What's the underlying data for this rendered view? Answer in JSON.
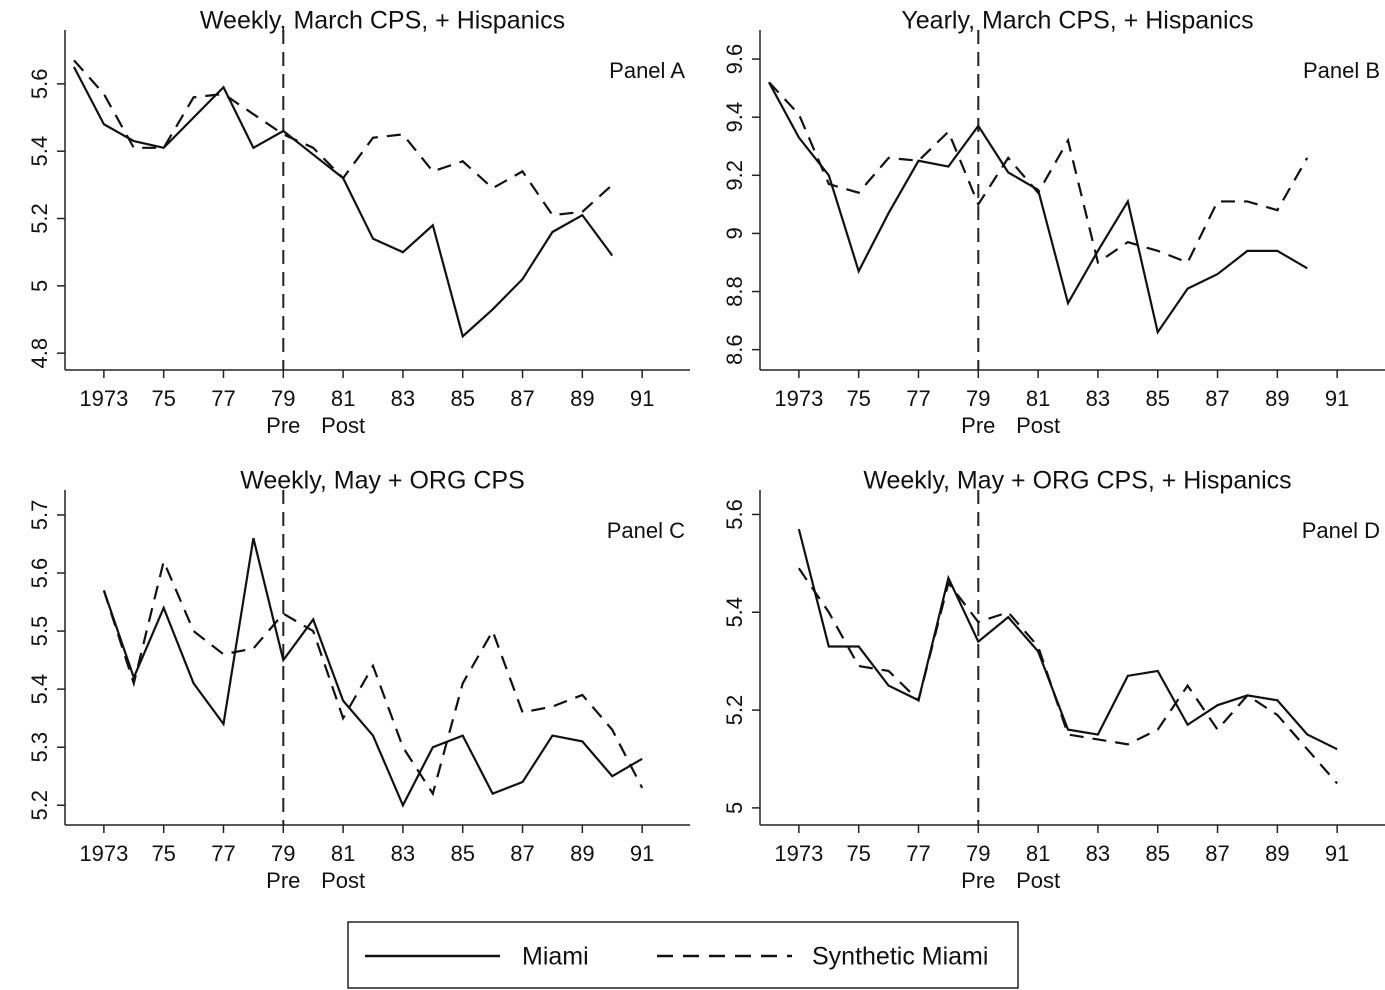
{
  "chart_data": [
    {
      "type": "line",
      "title": "Weekly, March CPS, + Hispanics",
      "panel_label": "Panel A",
      "x": [
        1972,
        1973,
        1974,
        1975,
        1976,
        1977,
        1978,
        1979,
        1980,
        1981,
        1982,
        1983,
        1984,
        1985,
        1986,
        1987,
        1988,
        1989,
        1990
      ],
      "series": [
        {
          "name": "Miami",
          "color": "#111111",
          "dash": "solid",
          "values": [
            5.65,
            5.48,
            5.43,
            5.41,
            5.5,
            5.59,
            5.41,
            5.46,
            5.39,
            5.32,
            5.14,
            5.1,
            5.18,
            4.85,
            4.93,
            5.02,
            5.16,
            5.21,
            5.09
          ]
        },
        {
          "name": "Synthetic Miami",
          "color": "#111111",
          "dash": "dashed",
          "values": [
            5.67,
            5.57,
            5.41,
            5.41,
            5.56,
            5.57,
            5.51,
            5.45,
            5.41,
            5.32,
            5.44,
            5.45,
            5.34,
            5.37,
            5.29,
            5.34,
            5.21,
            5.22,
            5.3
          ]
        }
      ],
      "xlim": [
        1971.7,
        1992.6
      ],
      "ylim": [
        4.75,
        5.76
      ],
      "xticks": [
        {
          "value": 1973,
          "label": "1973"
        },
        {
          "value": 1975,
          "label": "75"
        },
        {
          "value": 1977,
          "label": "77"
        },
        {
          "value": 1979,
          "label": "79"
        },
        {
          "value": 1981,
          "label": "81"
        },
        {
          "value": 1983,
          "label": "83"
        },
        {
          "value": 1985,
          "label": "85"
        },
        {
          "value": 1987,
          "label": "87"
        },
        {
          "value": 1989,
          "label": "89"
        },
        {
          "value": 1991,
          "label": "91"
        }
      ],
      "yticks": [
        4.8,
        5,
        5.2,
        5.4,
        5.6
      ],
      "vline": 1979,
      "annotations": [
        {
          "text": "Pre",
          "x": 1979
        },
        {
          "text": "Post",
          "x": 1981
        }
      ]
    },
    {
      "type": "line",
      "title": "Yearly, March CPS, + Hispanics",
      "panel_label": "Panel B",
      "x": [
        1972,
        1973,
        1974,
        1975,
        1976,
        1977,
        1978,
        1979,
        1980,
        1981,
        1982,
        1983,
        1984,
        1985,
        1986,
        1987,
        1988,
        1989,
        1990
      ],
      "series": [
        {
          "color": "#111111",
          "dash": "solid",
          "values": [
            9.52,
            9.33,
            9.2,
            8.87,
            9.07,
            9.25,
            9.23,
            9.37,
            9.21,
            9.15,
            8.76,
            8.94,
            9.11,
            8.66,
            8.81,
            8.86,
            8.94,
            8.94,
            8.88
          ]
        },
        {
          "color": "#111111",
          "dash": "dashed",
          "values": [
            9.52,
            9.41,
            9.17,
            9.14,
            9.26,
            9.25,
            9.35,
            9.1,
            9.26,
            9.14,
            9.32,
            8.9,
            8.97,
            8.94,
            8.9,
            9.11,
            9.11,
            9.08,
            9.26
          ]
        }
      ],
      "xlim": [
        1971.7,
        1992.6
      ],
      "ylim": [
        8.53,
        9.7
      ],
      "xticks": [
        {
          "value": 1973,
          "label": "1973"
        },
        {
          "value": 1975,
          "label": "75"
        },
        {
          "value": 1977,
          "label": "77"
        },
        {
          "value": 1979,
          "label": "79"
        },
        {
          "value": 1981,
          "label": "81"
        },
        {
          "value": 1983,
          "label": "83"
        },
        {
          "value": 1985,
          "label": "85"
        },
        {
          "value": 1987,
          "label": "87"
        },
        {
          "value": 1989,
          "label": "89"
        },
        {
          "value": 1991,
          "label": "91"
        }
      ],
      "yticks": [
        8.6,
        8.8,
        9,
        9.2,
        9.4,
        9.6
      ],
      "vline": 1979,
      "annotations": [
        {
          "text": "Pre",
          "x": 1979
        },
        {
          "text": "Post",
          "x": 1981
        }
      ]
    },
    {
      "type": "line",
      "title": "Weekly, May + ORG CPS",
      "panel_label": "Panel C",
      "x": [
        1973,
        1974,
        1975,
        1976,
        1977,
        1978,
        1979,
        1980,
        1981,
        1982,
        1983,
        1984,
        1985,
        1986,
        1987,
        1988,
        1989,
        1990,
        1991
      ],
      "series": [
        {
          "color": "#111111",
          "dash": "solid",
          "values": [
            5.57,
            5.42,
            5.54,
            5.41,
            5.34,
            5.66,
            5.45,
            5.52,
            5.38,
            5.32,
            5.2,
            5.3,
            5.32,
            5.22,
            5.24,
            5.32,
            5.31,
            5.25,
            5.28
          ]
        },
        {
          "color": "#111111",
          "dash": "dashed",
          "values": [
            5.57,
            5.41,
            5.62,
            5.5,
            5.46,
            5.47,
            5.53,
            5.5,
            5.35,
            5.44,
            5.3,
            5.22,
            5.41,
            5.5,
            5.36,
            5.37,
            5.39,
            5.33,
            5.23
          ]
        }
      ],
      "xlim": [
        1971.7,
        1992.6
      ],
      "ylim": [
        5.166,
        5.743
      ],
      "xticks": [
        {
          "value": 1973,
          "label": "1973"
        },
        {
          "value": 1975,
          "label": "75"
        },
        {
          "value": 1977,
          "label": "77"
        },
        {
          "value": 1979,
          "label": "79"
        },
        {
          "value": 1981,
          "label": "81"
        },
        {
          "value": 1983,
          "label": "83"
        },
        {
          "value": 1985,
          "label": "85"
        },
        {
          "value": 1987,
          "label": "87"
        },
        {
          "value": 1989,
          "label": "89"
        },
        {
          "value": 1991,
          "label": "91"
        }
      ],
      "yticks": [
        5.2,
        5.3,
        5.4,
        5.5,
        5.6,
        5.7
      ],
      "vline": 1979,
      "annotations": [
        {
          "text": "Pre",
          "x": 1979
        },
        {
          "text": "Post",
          "x": 1981
        }
      ]
    },
    {
      "type": "line",
      "title": "Weekly, May + ORG CPS, + Hispanics",
      "panel_label": "Panel D",
      "x": [
        1973,
        1974,
        1975,
        1976,
        1977,
        1978,
        1979,
        1980,
        1981,
        1982,
        1983,
        1984,
        1985,
        1986,
        1987,
        1988,
        1989,
        1990,
        1991
      ],
      "series": [
        {
          "color": "#111111",
          "dash": "solid",
          "values": [
            5.57,
            5.33,
            5.33,
            5.25,
            5.22,
            5.47,
            5.34,
            5.39,
            5.32,
            5.16,
            5.15,
            5.27,
            5.28,
            5.17,
            5.21,
            5.23,
            5.22,
            5.15,
            5.12
          ]
        },
        {
          "color": "#111111",
          "dash": "dashed",
          "values": [
            5.49,
            5.4,
            5.29,
            5.28,
            5.22,
            5.46,
            5.38,
            5.4,
            5.33,
            5.15,
            5.14,
            5.13,
            5.16,
            5.25,
            5.16,
            5.23,
            5.19,
            5.12,
            5.05
          ]
        }
      ],
      "xlim": [
        1971.7,
        1992.6
      ],
      "ylim": [
        4.965,
        5.65
      ],
      "xticks": [
        {
          "value": 1973,
          "label": "1973"
        },
        {
          "value": 1975,
          "label": "75"
        },
        {
          "value": 1977,
          "label": "77"
        },
        {
          "value": 1979,
          "label": "79"
        },
        {
          "value": 1981,
          "label": "81"
        },
        {
          "value": 1983,
          "label": "83"
        },
        {
          "value": 1985,
          "label": "85"
        },
        {
          "value": 1987,
          "label": "87"
        },
        {
          "value": 1989,
          "label": "89"
        },
        {
          "value": 1991,
          "label": "91"
        }
      ],
      "yticks": [
        5,
        5.2,
        5.4,
        5.6
      ],
      "vline": 1979,
      "annotations": [
        {
          "text": "Pre",
          "x": 1979
        },
        {
          "text": "Post",
          "x": 1981
        }
      ]
    }
  ]
}
